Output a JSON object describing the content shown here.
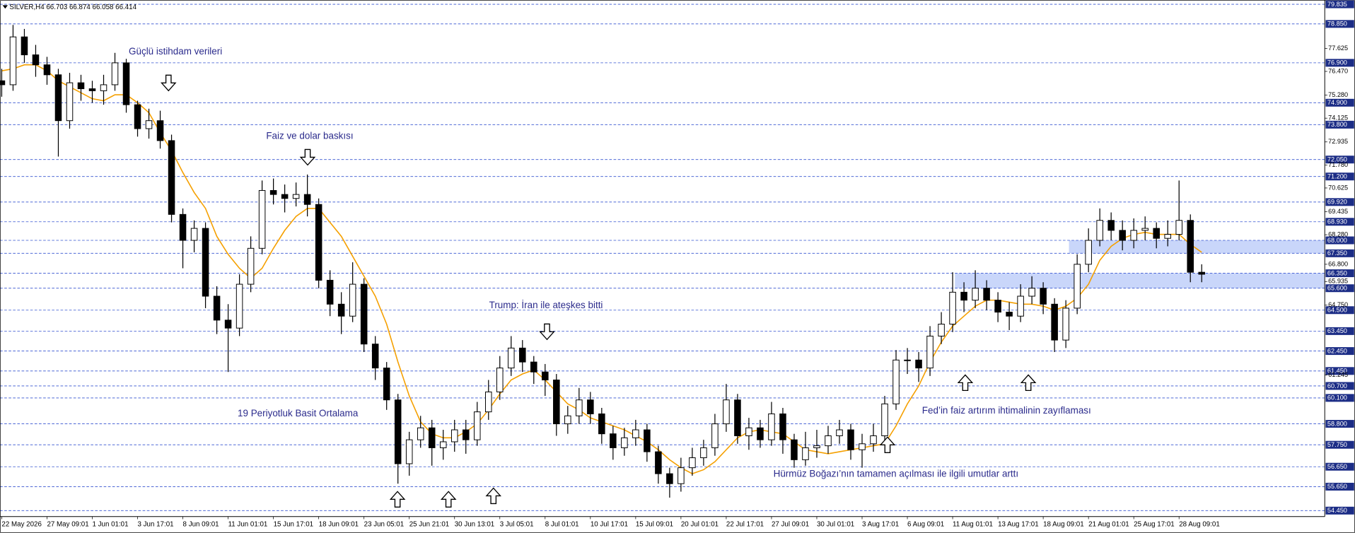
{
  "chart_data": {
    "type": "candlestick",
    "symbol": "SILVER,H4",
    "header_ohlc": [
      66.703,
      66.874,
      66.058,
      66.414
    ],
    "ylim": [
      54.15,
      80.05
    ],
    "yticks": [
      77.625,
      {
        "value": 76.47,
        "label": "76.470"
      },
      {
        "value": 75.28,
        "label": "75.280"
      },
      74.125,
      72.935,
      {
        "value": 71.78,
        "label": "71.780"
      },
      70.625,
      69.435,
      {
        "value": 68.28,
        "label": "68.280"
      },
      {
        "value": 66.8,
        "label": "66.800"
      },
      65.935,
      {
        "value": 64.75,
        "label": "64.750"
      },
      61.245
    ],
    "levels": [
      79.835,
      {
        "value": 78.85,
        "label": "78.850"
      },
      {
        "value": 76.9,
        "label": "76.900"
      },
      {
        "value": 74.9,
        "label": "74.900"
      },
      {
        "value": 73.8,
        "label": "73.800"
      },
      {
        "value": 72.05,
        "label": "72.050"
      },
      {
        "value": 71.2,
        "label": "71.200"
      },
      {
        "value": 69.92,
        "label": "69.920"
      },
      {
        "value": 68.93,
        "label": "68.930"
      },
      {
        "value": 68.0,
        "label": "68.000"
      },
      {
        "value": 67.35,
        "label": "67.350"
      },
      {
        "value": 66.35,
        "label": "66.350"
      },
      {
        "value": 65.6,
        "label": "65.600"
      },
      {
        "value": 64.5,
        "label": "64.500"
      },
      {
        "value": 63.45,
        "label": "63.450"
      },
      {
        "value": 62.45,
        "label": "62.450"
      },
      {
        "value": 61.45,
        "label": "61.450"
      },
      {
        "value": 60.7,
        "label": "60.700"
      },
      {
        "value": 60.1,
        "label": "60.100"
      },
      {
        "value": 58.8,
        "label": "58.800"
      },
      {
        "value": 57.75,
        "label": "57.750"
      },
      {
        "value": 56.65,
        "label": "56.650"
      },
      {
        "value": 55.65,
        "label": "55.650"
      },
      {
        "value": 54.45,
        "label": "54.450"
      }
    ],
    "zones": [
      {
        "low": 67.35,
        "high": 68.0
      },
      {
        "low": 65.6,
        "high": 66.35
      }
    ],
    "categories": [
      "22 May 2026",
      null,
      null,
      null,
      "27 May 09:01",
      null,
      null,
      null,
      "1 Jun 01:01",
      null,
      null,
      null,
      "3 Jun 17:01",
      null,
      null,
      null,
      "8 Jun 09:01",
      null,
      null,
      null,
      "11 Jun 01:01",
      null,
      null,
      null,
      "15 Jun 17:01",
      null,
      null,
      null,
      "18 Jun 09:01",
      null,
      null,
      null,
      "23 Jun 05:01",
      null,
      null,
      null,
      "25 Jun 21:01",
      null,
      null,
      null,
      "30 Jun 13:01",
      null,
      null,
      null,
      "3 Jul 05:01",
      null,
      null,
      null,
      "8 Jul 01:01",
      null,
      null,
      null,
      "10 Jul 17:01",
      null,
      null,
      null,
      "15 Jul 09:01",
      null,
      null,
      null,
      "20 Jul 01:01",
      null,
      null,
      null,
      "22 Jul 17:01",
      null,
      null,
      null,
      "27 Jul 09:01",
      null,
      null,
      null,
      "30 Jul 01:01",
      null,
      null,
      null,
      "3 Aug 17:01",
      null,
      null,
      null,
      "6 Aug 09:01",
      null,
      null,
      null,
      "11 Aug 01:01",
      null,
      null,
      null,
      "13 Aug 17:01",
      null,
      null,
      null,
      "18 Aug 09:01",
      null,
      null,
      null,
      "21 Aug 01:01",
      null,
      null,
      null,
      "25 Aug 17:01",
      null,
      null,
      null,
      "28 Aug 09:01",
      null,
      null
    ],
    "open": [
      76.0,
      75.8,
      78.2,
      77.3,
      76.8,
      76.3,
      74.0,
      75.9,
      75.6,
      75.5,
      75.8,
      76.9,
      74.8,
      73.6,
      74.0,
      73.0,
      69.3,
      68.0,
      68.6,
      65.2,
      64.0,
      63.6,
      65.8,
      67.6,
      70.5,
      70.3,
      70.1,
      70.3,
      69.8,
      66.0,
      64.8,
      64.2,
      65.8,
      62.8,
      61.6,
      60.0,
      56.8,
      58.0,
      58.6,
      57.6,
      57.9,
      58.5,
      58.0,
      59.4,
      60.4,
      61.6,
      62.6,
      61.9,
      61.4,
      61.0,
      58.8,
      59.2,
      60.0,
      59.3,
      58.3,
      57.6,
      58.1,
      58.5,
      57.4,
      56.3,
      55.8,
      56.6,
      57.1,
      57.6,
      58.8,
      60.0,
      58.2,
      58.6,
      58.0,
      59.3,
      58.0,
      57.0,
      57.6,
      57.7,
      58.2,
      58.5,
      57.5,
      57.8,
      58.2,
      59.8,
      62.0,
      62.0,
      61.6,
      63.2,
      63.8,
      65.4,
      65.0,
      65.6,
      65.0,
      64.4,
      64.2,
      65.2,
      65.6,
      64.8,
      63.0,
      64.6,
      66.8,
      68.0,
      69.0,
      68.5,
      68.0,
      68.5,
      68.6,
      68.1,
      68.3,
      69.0,
      66.4
    ],
    "high": [
      76.6,
      78.8,
      78.6,
      77.8,
      77.2,
      76.6,
      76.4,
      76.3,
      76.0,
      76.3,
      77.4,
      77.1,
      75.0,
      74.6,
      74.5,
      73.3,
      69.6,
      69.0,
      68.9,
      65.7,
      64.8,
      66.3,
      68.2,
      71.0,
      71.1,
      70.8,
      70.9,
      71.3,
      70.1,
      66.5,
      65.4,
      66.9,
      66.1,
      63.2,
      61.9,
      60.3,
      58.4,
      59.2,
      59.0,
      58.5,
      59.0,
      59.0,
      59.9,
      61.0,
      62.2,
      63.2,
      63.0,
      62.2,
      61.8,
      61.3,
      59.7,
      60.6,
      60.4,
      59.6,
      58.7,
      58.6,
      59.0,
      58.8,
      57.7,
      56.6,
      57.1,
      57.6,
      58.0,
      59.3,
      60.8,
      60.3,
      59.1,
      59.0,
      59.9,
      59.6,
      58.3,
      58.4,
      58.5,
      58.7,
      59.0,
      58.8,
      58.3,
      58.8,
      60.2,
      62.5,
      62.6,
      62.4,
      63.7,
      64.4,
      66.4,
      65.9,
      66.5,
      66.0,
      65.4,
      64.9,
      65.8,
      66.2,
      65.9,
      65.1,
      65.0,
      67.3,
      68.6,
      69.6,
      69.4,
      69.0,
      69.1,
      69.2,
      68.9,
      69.0,
      71.0,
      69.3,
      66.8
    ],
    "low": [
      75.2,
      75.5,
      76.9,
      76.2,
      75.8,
      72.2,
      73.6,
      75.0,
      74.9,
      74.8,
      75.5,
      74.4,
      73.2,
      73.1,
      72.6,
      68.9,
      66.6,
      67.4,
      64.6,
      63.3,
      61.4,
      63.2,
      65.4,
      67.3,
      69.8,
      69.4,
      69.7,
      69.2,
      65.6,
      64.2,
      63.3,
      63.9,
      62.4,
      61.0,
      59.5,
      55.8,
      56.2,
      57.6,
      56.7,
      57.0,
      57.4,
      57.3,
      57.7,
      59.0,
      60.0,
      61.2,
      61.4,
      60.8,
      60.2,
      58.2,
      58.3,
      58.8,
      58.8,
      57.8,
      57.0,
      57.2,
      57.7,
      56.9,
      55.8,
      55.1,
      55.4,
      56.2,
      56.7,
      57.2,
      58.4,
      57.8,
      57.5,
      57.6,
      57.7,
      57.3,
      56.6,
      56.7,
      57.1,
      57.3,
      57.8,
      57.0,
      56.6,
      57.4,
      57.9,
      59.5,
      61.3,
      60.9,
      61.2,
      62.8,
      63.4,
      64.4,
      64.6,
      64.5,
      63.9,
      63.5,
      63.9,
      64.8,
      64.3,
      62.4,
      62.6,
      64.3,
      66.4,
      67.7,
      68.0,
      67.5,
      67.6,
      68.0,
      67.6,
      67.7,
      68.0,
      65.9,
      65.9
    ],
    "close": [
      75.8,
      78.2,
      77.3,
      76.8,
      76.3,
      74.0,
      75.9,
      75.6,
      75.5,
      75.8,
      76.9,
      74.8,
      73.6,
      74.0,
      73.0,
      69.3,
      68.0,
      68.6,
      65.2,
      64.0,
      63.6,
      65.8,
      67.6,
      70.5,
      70.3,
      70.1,
      70.3,
      69.8,
      66.0,
      64.8,
      64.2,
      65.8,
      62.8,
      61.6,
      60.0,
      56.8,
      58.0,
      58.6,
      57.6,
      57.9,
      58.5,
      58.0,
      59.4,
      60.4,
      61.6,
      62.6,
      61.9,
      61.4,
      61.0,
      58.8,
      59.2,
      60.0,
      59.3,
      58.3,
      57.6,
      58.1,
      58.5,
      57.4,
      56.3,
      55.8,
      56.6,
      57.1,
      57.6,
      58.8,
      60.0,
      58.2,
      58.6,
      58.0,
      59.3,
      58.0,
      57.0,
      57.6,
      57.7,
      58.2,
      58.5,
      57.5,
      57.8,
      58.2,
      59.8,
      62.0,
      62.0,
      61.6,
      63.2,
      63.8,
      65.4,
      65.0,
      65.6,
      65.0,
      64.4,
      64.2,
      65.2,
      65.6,
      64.8,
      63.0,
      64.6,
      66.8,
      68.0,
      69.0,
      68.5,
      68.0,
      68.5,
      68.6,
      68.1,
      68.3,
      69.0,
      66.4,
      66.3
    ],
    "series": [
      {
        "name": "19 Periyotluk Basit Ortalama",
        "color": "#f5a000",
        "values": [
          76.5,
          76.6,
          76.8,
          76.8,
          76.5,
          76.0,
          75.7,
          75.4,
          75.1,
          75.0,
          75.3,
          75.3,
          74.9,
          74.4,
          73.4,
          72.5,
          71.4,
          70.4,
          69.6,
          68.2,
          67.3,
          66.6,
          66.1,
          66.6,
          67.6,
          68.5,
          69.2,
          69.6,
          69.6,
          68.9,
          68.2,
          67.2,
          66.2,
          65.2,
          63.8,
          61.9,
          60.2,
          58.9,
          58.3,
          58.1,
          58.1,
          58.4,
          58.8,
          59.5,
          60.3,
          61.0,
          61.3,
          61.5,
          61.0,
          60.4,
          59.8,
          59.5,
          59.1,
          58.9,
          58.7,
          58.5,
          58.2,
          57.9,
          57.5,
          57.0,
          56.6,
          56.3,
          56.5,
          56.9,
          57.5,
          58.1,
          58.4,
          58.5,
          58.4,
          58.3,
          57.9,
          57.5,
          57.4,
          57.3,
          57.4,
          57.5,
          57.6,
          57.7,
          57.8,
          58.7,
          59.8,
          60.7,
          61.9,
          62.9,
          63.7,
          64.2,
          64.7,
          65.0,
          65.0,
          64.9,
          64.8,
          64.8,
          64.7,
          64.5,
          64.7,
          65.1,
          65.8,
          67.0,
          67.7,
          68.1,
          68.3,
          68.4,
          68.3,
          68.3,
          68.3,
          67.8,
          67.4
        ]
      }
    ],
    "annotations": [
      "Güçlü istihdam verileri",
      "Faiz ve dolar baskısı",
      "Trump: İran ile ateşkes bitti",
      "Fed’in faiz artırım ihtimalinin zayıflaması",
      "Hürmüz Boğazı’nın tamamen açılması ile ilgili umutlar arttı"
    ]
  }
}
